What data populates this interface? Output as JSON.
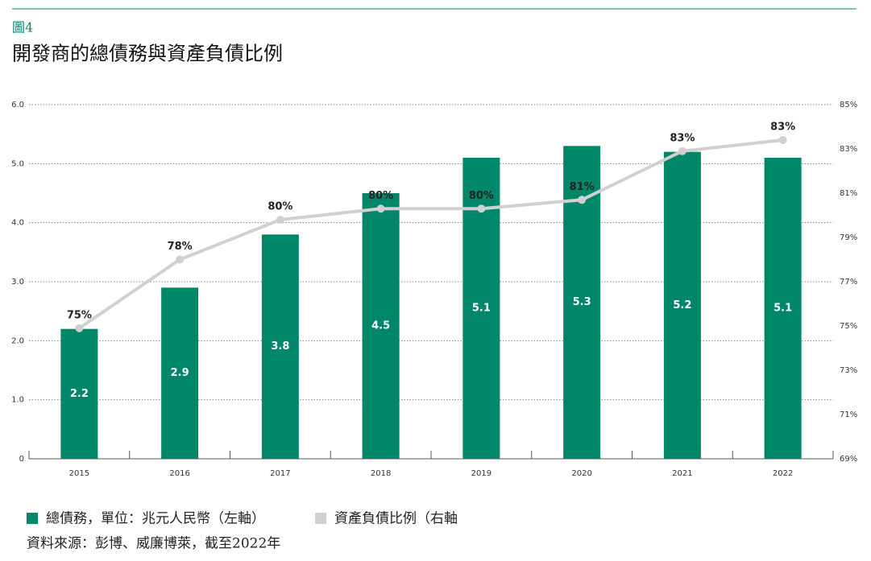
{
  "chart_data": {
    "type": "bar-line",
    "figure_label": "圖4",
    "title": "開發商的總債務與資產負債比例",
    "categories": [
      "2015",
      "2016",
      "2017",
      "2018",
      "2019",
      "2020",
      "2021",
      "2022"
    ],
    "series": [
      {
        "name": "總債務，單位：兆元人民幣（左軸）",
        "type": "bar",
        "color": "#00876a",
        "values": [
          2.2,
          2.9,
          3.8,
          4.5,
          5.1,
          5.3,
          5.2,
          5.1
        ]
      },
      {
        "name": "資產負債比例（右軸",
        "type": "line",
        "axis": "y2",
        "color": "#d0d0d0",
        "values": [
          74.9,
          78.0,
          79.8,
          80.3,
          80.3,
          80.7,
          82.9,
          83.4
        ],
        "value_labels": [
          "75%",
          "78%",
          "80%",
          "80%",
          "80%",
          "81%",
          "83%",
          "83%"
        ]
      }
    ],
    "ylim": [
      0,
      6
    ],
    "yticks": [
      0,
      {
        "value": 1,
        "label": "1.0"
      },
      {
        "value": 2,
        "label": "2.0"
      },
      {
        "value": 3,
        "label": "3.0"
      },
      {
        "value": 4,
        "label": "4.0"
      },
      {
        "value": 5,
        "label": "5.0"
      },
      {
        "value": 6,
        "label": "6.0"
      }
    ],
    "y2lim": [
      69,
      85
    ],
    "y2ticks": [
      {
        "value": 69,
        "label": "69%"
      },
      {
        "value": 71,
        "label": "71%"
      },
      {
        "value": 73,
        "label": "73%"
      },
      {
        "value": 75,
        "label": "75%"
      },
      {
        "value": 77,
        "label": "77%"
      },
      {
        "value": 79,
        "label": "79%"
      },
      {
        "value": 81,
        "label": "81%"
      },
      {
        "value": 83,
        "label": "83%"
      },
      {
        "value": 85,
        "label": "85%"
      }
    ],
    "grid": true,
    "source": "資料來源：彭博、威廉博萊，截至2022年"
  }
}
